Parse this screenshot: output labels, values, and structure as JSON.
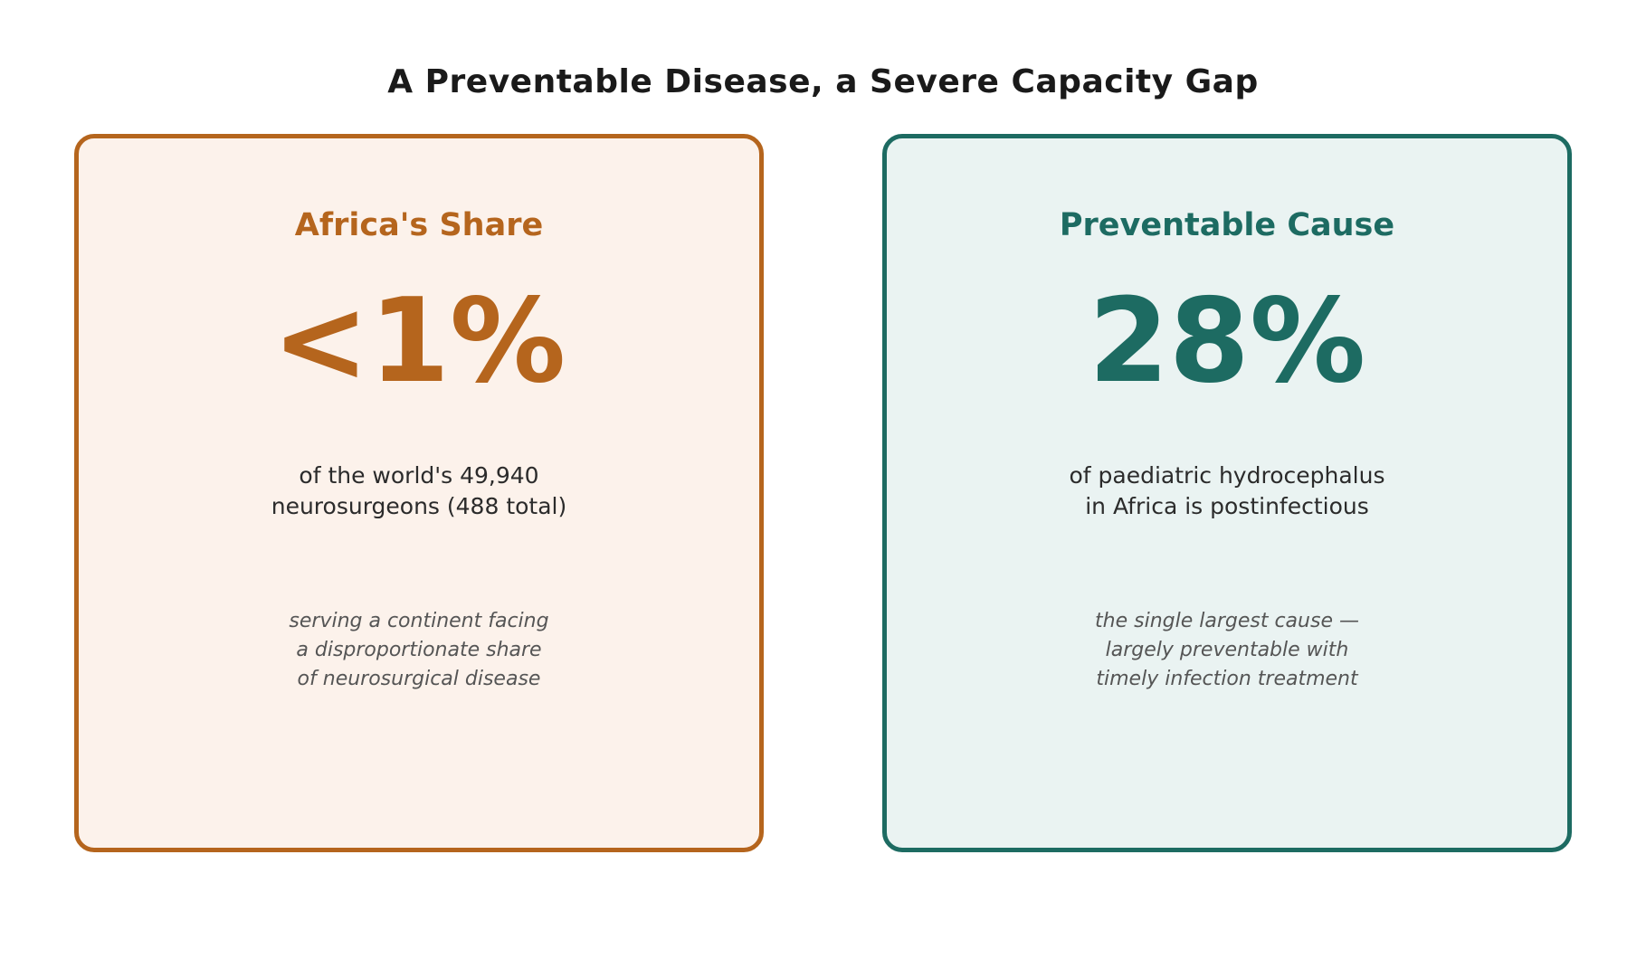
{
  "title": "A Preventable Disease, a Severe Capacity Gap",
  "colors": {
    "left_accent": "#b5651d",
    "left_background": "#fcf2eb",
    "right_accent": "#1d6b62",
    "right_background": "#eaf3f2"
  },
  "cards": [
    {
      "heading": "Africa's Share",
      "stat": "<1%",
      "description": [
        "of the world's 49,940",
        "neurosurgeons (488 total)"
      ],
      "note": [
        "serving a continent facing",
        "a disproportionate share",
        "of neurosurgical disease"
      ]
    },
    {
      "heading": "Preventable Cause",
      "stat": "28%",
      "description": [
        "of paediatric hydrocephalus",
        "in Africa is postinfectious"
      ],
      "note": [
        "the single largest cause —",
        "largely preventable with",
        "timely infection treatment"
      ]
    }
  ]
}
